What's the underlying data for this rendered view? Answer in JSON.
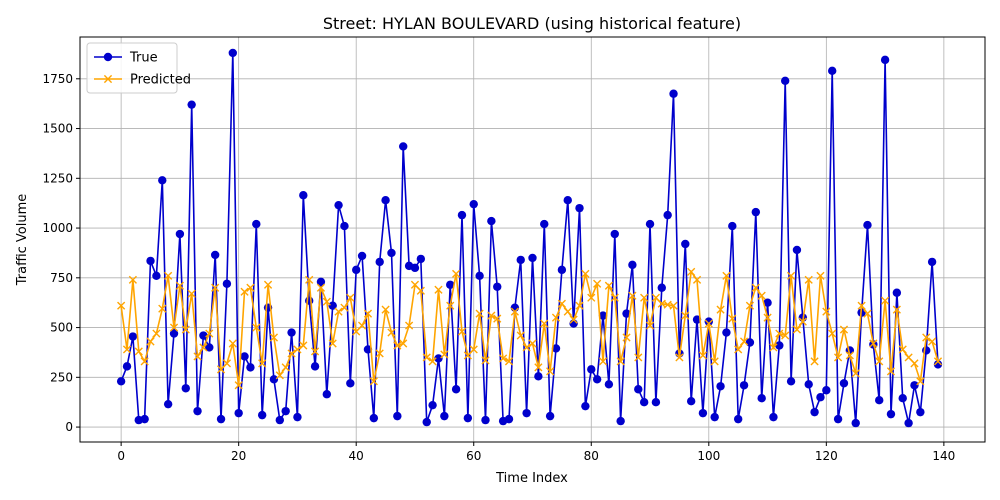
{
  "chart_data": {
    "type": "line",
    "title": "Street: HYLAN BOULEVARD (using historical feature)",
    "xlabel": "Time Index",
    "ylabel": "Traffic Volume",
    "xlim": [
      -7,
      147
    ],
    "ylim": [
      -75,
      1960
    ],
    "xticks": [
      0,
      20,
      40,
      60,
      80,
      100,
      120,
      140
    ],
    "yticks": [
      0,
      250,
      500,
      750,
      1000,
      1250,
      1500,
      1750
    ],
    "grid": true,
    "legend_position": "upper-left",
    "series": [
      {
        "name": "True",
        "color": "#0000cc",
        "marker": "circle",
        "values": [
          230,
          305,
          455,
          35,
          40,
          835,
          760,
          1240,
          115,
          470,
          970,
          195,
          1620,
          80,
          460,
          400,
          865,
          40,
          720,
          1880,
          70,
          355,
          300,
          1020,
          60,
          600,
          240,
          35,
          80,
          475,
          50,
          1165,
          635,
          305,
          730,
          165,
          610,
          1115,
          1010,
          220,
          790,
          860,
          390,
          45,
          830,
          1140,
          875,
          55,
          1410,
          810,
          800,
          845,
          25,
          110,
          345,
          55,
          715,
          190,
          1065,
          45,
          1120,
          760,
          35,
          1035,
          705,
          30,
          40,
          600,
          840,
          70,
          850,
          255,
          1020,
          55,
          395,
          790,
          1140,
          520,
          1100,
          105,
          290,
          240,
          560,
          215,
          970,
          30,
          570,
          815,
          190,
          125,
          1020,
          125,
          700,
          1065,
          1675,
          370,
          920,
          130,
          540,
          70,
          530,
          50,
          205,
          475,
          1010,
          40,
          210,
          425,
          1080,
          145,
          625,
          50,
          410,
          1740,
          230,
          890,
          550,
          215,
          75,
          150,
          185,
          1790,
          40,
          220,
          385,
          20,
          575,
          1015,
          415,
          135,
          1845,
          65,
          675,
          145,
          20,
          210,
          75,
          385,
          830,
          315
        ]
      },
      {
        "name": "Predicted",
        "color": "#ffa500",
        "marker": "x",
        "values": [
          610,
          390,
          740,
          380,
          330,
          430,
          470,
          595,
          760,
          500,
          710,
          490,
          670,
          355,
          400,
          470,
          700,
          290,
          320,
          420,
          210,
          680,
          700,
          500,
          320,
          715,
          450,
          260,
          300,
          370,
          390,
          410,
          740,
          380,
          700,
          630,
          420,
          580,
          600,
          650,
          480,
          510,
          570,
          230,
          370,
          590,
          475,
          410,
          420,
          510,
          715,
          685,
          350,
          330,
          690,
          365,
          610,
          770,
          480,
          360,
          390,
          570,
          335,
          560,
          545,
          345,
          330,
          580,
          460,
          400,
          420,
          300,
          520,
          280,
          550,
          620,
          580,
          540,
          610,
          770,
          650,
          720,
          330,
          710,
          650,
          330,
          450,
          660,
          350,
          650,
          510,
          650,
          620,
          615,
          610,
          350,
          560,
          780,
          740,
          360,
          520,
          330,
          590,
          760,
          545,
          390,
          430,
          610,
          700,
          660,
          550,
          400,
          470,
          460,
          760,
          490,
          530,
          740,
          330,
          760,
          580,
          470,
          350,
          490,
          360,
          270,
          610,
          570,
          420,
          330,
          635,
          280,
          590,
          390,
          350,
          320,
          230,
          450,
          430,
          330
        ]
      }
    ]
  }
}
